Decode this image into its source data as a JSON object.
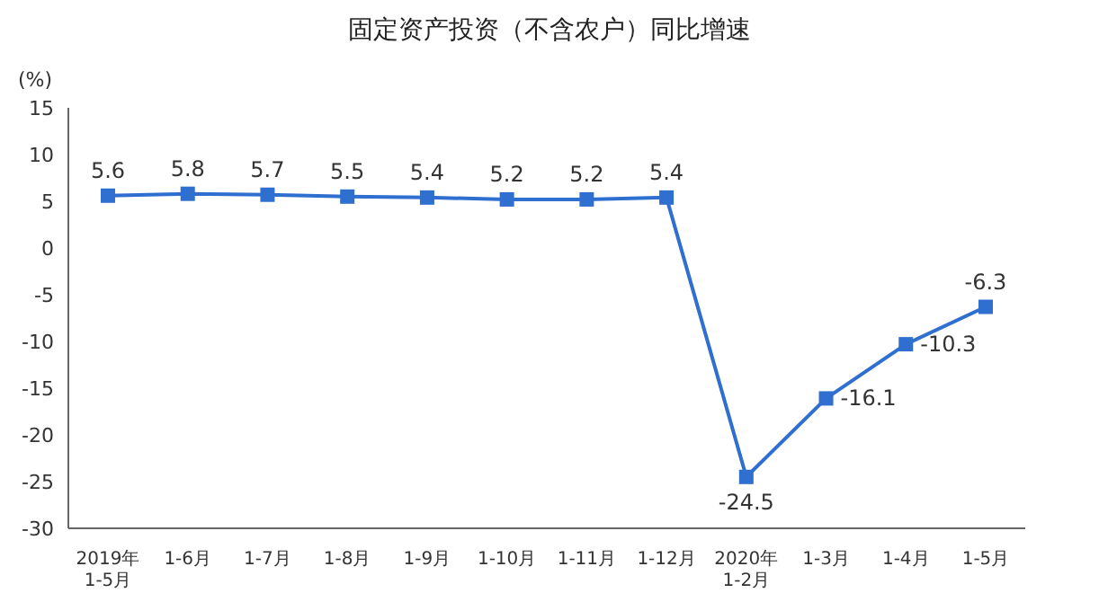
{
  "chart_data": {
    "type": "line",
    "title": "固定资产投资（不含农户）同比增速",
    "ylabel": "(%)",
    "categories": [
      "2019年\n1-5月",
      "1-6月",
      "1-7月",
      "1-8月",
      "1-9月",
      "1-10月",
      "1-11月",
      "1-12月",
      "2020年\n1-2月",
      "1-3月",
      "1-4月",
      "1-5月"
    ],
    "series": [
      {
        "color": "#2e6fd0",
        "values": [
          5.6,
          5.8,
          5.7,
          5.5,
          5.4,
          5.2,
          5.2,
          5.4,
          -24.5,
          -16.1,
          -10.3,
          -6.3
        ]
      }
    ],
    "ylim": [
      -30,
      15
    ],
    "yticks": [
      -30,
      -25,
      -20,
      -15,
      -10,
      -5,
      0,
      5,
      10,
      15
    ],
    "grid": false,
    "legend": false,
    "marker": "square",
    "line_style": "solid",
    "data_labels": true
  }
}
